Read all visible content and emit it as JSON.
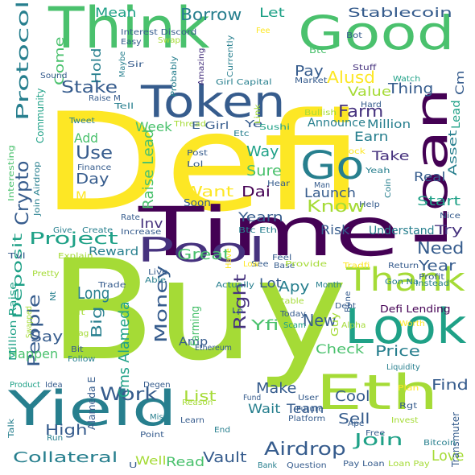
{
  "palette": {
    "yellow": "#fde725",
    "lime": "#a5db36",
    "green": "#4ac16d",
    "teal": "#1fa187",
    "cyan": "#277f8e",
    "blue": "#365c8d",
    "indigo": "#46327e",
    "purple": "#440154"
  },
  "words": [
    {
      "text": "Defi",
      "color": "#fde725"
    },
    {
      "text": "Buy",
      "color": "#a5db36"
    },
    {
      "text": "Think",
      "color": "#4ac16d"
    },
    {
      "text": "Good",
      "color": "#4ac16d"
    },
    {
      "text": "Time",
      "color": "#440154"
    },
    {
      "text": "Token",
      "color": "#365c8d"
    },
    {
      "text": "Loan",
      "color": "#440154"
    },
    {
      "text": "Yield",
      "color": "#277f8e"
    },
    {
      "text": "Eth",
      "color": "#a5db36"
    },
    {
      "text": "Look",
      "color": "#1fa187"
    },
    {
      "text": "Go",
      "color": "#277f8e"
    },
    {
      "text": "Pool",
      "color": "#46327e"
    },
    {
      "text": "Thank",
      "color": "#a5db36"
    },
    {
      "text": "Know",
      "color": "#a5db36"
    },
    {
      "text": "Protocol",
      "color": "#277f8e"
    },
    {
      "text": "Stablecoin",
      "color": "#365c8d"
    },
    {
      "text": "Borrow",
      "color": "#277f8e"
    },
    {
      "text": "Let",
      "color": "#1fa187"
    },
    {
      "text": "Mean",
      "color": "#1fa187"
    },
    {
      "text": "Come",
      "color": "#4ac16d"
    },
    {
      "text": "Hold",
      "color": "#277f8e"
    },
    {
      "text": "Stake",
      "color": "#365c8d"
    },
    {
      "text": "Pay",
      "color": "#365c8d"
    },
    {
      "text": "Alusd",
      "color": "#fde725"
    },
    {
      "text": "Thing",
      "color": "#365c8d"
    },
    {
      "text": "Value",
      "color": "#a5db36"
    },
    {
      "text": "Farm",
      "color": "#46327e"
    },
    {
      "text": "Earn",
      "color": "#277f8e"
    },
    {
      "text": "Announce",
      "color": "#277f8e"
    },
    {
      "text": "Million",
      "color": "#277f8e"
    },
    {
      "text": "Cm",
      "color": "#365c8d"
    },
    {
      "text": "Lead",
      "color": "#1fa187"
    },
    {
      "text": "Asset",
      "color": "#277f8e"
    },
    {
      "text": "Crypto",
      "color": "#365c8d"
    },
    {
      "text": "Use",
      "color": "#365c8d"
    },
    {
      "text": "Add",
      "color": "#4ac16d"
    },
    {
      "text": "Week",
      "color": "#4ac16d"
    },
    {
      "text": "Day",
      "color": "#365c8d"
    },
    {
      "text": "M",
      "color": "#fde725"
    },
    {
      "text": "Project",
      "color": "#1fa187"
    },
    {
      "text": "Want",
      "color": "#fde725"
    },
    {
      "text": "Dai",
      "color": "#440154"
    },
    {
      "text": "Launch",
      "color": "#365c8d"
    },
    {
      "text": "Take",
      "color": "#46327e"
    },
    {
      "text": "Real",
      "color": "#365c8d"
    },
    {
      "text": "Start",
      "color": "#1fa187"
    },
    {
      "text": "Way",
      "color": "#1fa187"
    },
    {
      "text": "Sure",
      "color": "#4ac16d"
    },
    {
      "text": "Yearn",
      "color": "#365c8d"
    },
    {
      "text": "Try",
      "color": "#46327e"
    },
    {
      "text": "Understand",
      "color": "#277f8e"
    },
    {
      "text": "Risk",
      "color": "#365c8d"
    },
    {
      "text": "Need",
      "color": "#365c8d"
    },
    {
      "text": "Year",
      "color": "#365c8d"
    },
    {
      "text": "Deposit",
      "color": "#1fa187"
    },
    {
      "text": "People",
      "color": "#365c8d"
    },
    {
      "text": "Great",
      "color": "#4ac16d"
    },
    {
      "text": "Money",
      "color": "#365c8d"
    },
    {
      "text": "Inv",
      "color": "#46327e"
    },
    {
      "text": "Reward",
      "color": "#277f8e"
    },
    {
      "text": "Right",
      "color": "#46327e"
    },
    {
      "text": "Apy",
      "color": "#277f8e"
    },
    {
      "text": "Lot",
      "color": "#365c8d"
    },
    {
      "text": "New",
      "color": "#365c8d"
    },
    {
      "text": "Long",
      "color": "#277f8e"
    },
    {
      "text": "Big",
      "color": "#277f8e"
    },
    {
      "text": "Say",
      "color": "#365c8d"
    },
    {
      "text": "Happen",
      "color": "#4ac16d"
    },
    {
      "text": "Work",
      "color": "#365c8d"
    },
    {
      "text": "List",
      "color": "#a5db36"
    },
    {
      "text": "Yfi",
      "color": "#4ac16d"
    },
    {
      "text": "Make",
      "color": "#365c8d"
    },
    {
      "text": "Check",
      "color": "#4ac16d"
    },
    {
      "text": "Price",
      "color": "#277f8e"
    },
    {
      "text": "Find",
      "color": "#365c8d"
    },
    {
      "text": "Cool",
      "color": "#365c8d"
    },
    {
      "text": "Sell",
      "color": "#365c8d"
    },
    {
      "text": "High",
      "color": "#365c8d"
    },
    {
      "text": "Collateral",
      "color": "#277f8e"
    },
    {
      "text": "Airdrop",
      "color": "#365c8d"
    },
    {
      "text": "Join",
      "color": "#1fa187"
    },
    {
      "text": "Love",
      "color": "#a5db36"
    },
    {
      "text": "Wait",
      "color": "#277f8e"
    },
    {
      "text": "Team",
      "color": "#365c8d"
    },
    {
      "text": "Vault",
      "color": "#365c8d"
    },
    {
      "text": "Read",
      "color": "#4ac16d"
    },
    {
      "text": "Well",
      "color": "#a5db36"
    },
    {
      "text": "Amp",
      "color": "#365c8d"
    },
    {
      "text": "Farming",
      "color": "#4ac16d"
    },
    {
      "text": "Cms Alameda",
      "color": "#1fa187"
    },
    {
      "text": "Raise Lead",
      "color": "#4ac16d"
    },
    {
      "text": "Ye",
      "color": "#365c8d"
    },
    {
      "text": "Btc",
      "color": "#4ac16d"
    },
    {
      "text": "Bot",
      "color": "#365c8d"
    },
    {
      "text": "Easy",
      "color": "#365c8d"
    },
    {
      "text": "Interest Discord",
      "color": "#365c8d"
    },
    {
      "text": "Swap",
      "color": "#a5db36"
    },
    {
      "text": "Maybe",
      "color": "#277f8e"
    },
    {
      "text": "Sir",
      "color": "#365c8d"
    },
    {
      "text": "Probably",
      "color": "#277f8e"
    },
    {
      "text": "Amazing",
      "color": "#46327e"
    },
    {
      "text": "Currently",
      "color": "#277f8e"
    },
    {
      "text": "Fee",
      "color": "#fde725"
    },
    {
      "text": "Stuff",
      "color": "#46327e"
    },
    {
      "text": "Watch",
      "color": "#1fa187"
    },
    {
      "text": "Hard",
      "color": "#365c8d"
    },
    {
      "text": "Market",
      "color": "#365c8d"
    },
    {
      "text": "Girl Capital",
      "color": "#277f8e"
    },
    {
      "text": "Sound",
      "color": "#365c8d"
    },
    {
      "text": "Raise M",
      "color": "#365c8d"
    },
    {
      "text": "Tell",
      "color": "#277f8e"
    },
    {
      "text": "Tweet",
      "color": "#277f8e"
    },
    {
      "text": "Community",
      "color": "#1fa187"
    },
    {
      "text": "Thread",
      "color": "#a5db36"
    },
    {
      "text": "E Girl",
      "color": "#365c8d"
    },
    {
      "text": "Sushi",
      "color": "#1fa187"
    },
    {
      "text": "Bullish",
      "color": "#a5db36"
    },
    {
      "text": "Link",
      "color": "#a5db36"
    },
    {
      "text": "Etc",
      "color": "#277f8e"
    },
    {
      "text": "Post",
      "color": "#365c8d"
    },
    {
      "text": "Lol",
      "color": "#365c8d"
    },
    {
      "text": "Lock",
      "color": "#fde725"
    },
    {
      "text": "Yeah",
      "color": "#277f8e"
    },
    {
      "text": "Coin",
      "color": "#277f8e"
    },
    {
      "text": "Man",
      "color": "#365c8d"
    },
    {
      "text": "Hear",
      "color": "#365c8d"
    },
    {
      "text": "Help",
      "color": "#365c8d"
    },
    {
      "text": "Interesting",
      "color": "#4ac16d"
    },
    {
      "text": "Join Airdrop",
      "color": "#277f8e"
    },
    {
      "text": "Finance",
      "color": "#365c8d"
    },
    {
      "text": "Soon",
      "color": "#365c8d"
    },
    {
      "text": "Btc Eth",
      "color": "#277f8e"
    },
    {
      "text": "Rate",
      "color": "#365c8d"
    },
    {
      "text": "Give",
      "color": "#277f8e"
    },
    {
      "text": "Create",
      "color": "#277f8e"
    },
    {
      "text": "Increase",
      "color": "#365c8d"
    },
    {
      "text": "Nice",
      "color": "#365c8d"
    },
    {
      "text": "Tvl",
      "color": "#365c8d"
    },
    {
      "text": "Explain",
      "color": "#a5db36"
    },
    {
      "text": "Pretty",
      "color": "#a5db36"
    },
    {
      "text": "See",
      "color": "#365c8d"
    },
    {
      "text": "Base",
      "color": "#365c8d"
    },
    {
      "text": "Feel",
      "color": "#365c8d"
    },
    {
      "text": "Provide",
      "color": "#a5db36"
    },
    {
      "text": "Tradfi",
      "color": "#fde725"
    },
    {
      "text": "Return",
      "color": "#365c8d"
    },
    {
      "text": "Profit",
      "color": "#365c8d"
    },
    {
      "text": "Instead",
      "color": "#277f8e"
    },
    {
      "text": "Gon Na",
      "color": "#277f8e"
    },
    {
      "text": "Have",
      "color": "#fde725"
    },
    {
      "text": "Low",
      "color": "#fde725"
    },
    {
      "text": "Live",
      "color": "#365c8d"
    },
    {
      "text": "Able",
      "color": "#277f8e"
    },
    {
      "text": "Actually",
      "color": "#277f8e"
    },
    {
      "text": "Month",
      "color": "#277f8e"
    },
    {
      "text": "Trade",
      "color": "#365c8d"
    },
    {
      "text": "Lp",
      "color": "#365c8d"
    },
    {
      "text": "Stable",
      "color": "#a5db36"
    },
    {
      "text": "Debt",
      "color": "#365c8d"
    },
    {
      "text": "Defi Lending",
      "color": "#440154"
    },
    {
      "text": "Rune",
      "color": "#365c8d"
    },
    {
      "text": "Nt",
      "color": "#277f8e"
    },
    {
      "text": "Nft",
      "color": "#a5db36"
    },
    {
      "text": "Million Raise",
      "color": "#1fa187"
    },
    {
      "text": "Swapped",
      "color": "#a5db36"
    },
    {
      "text": "Bag",
      "color": "#a5db36"
    },
    {
      "text": "Today",
      "color": "#365c8d"
    },
    {
      "text": "Scam",
      "color": "#1fa187"
    },
    {
      "text": "Alpha",
      "color": "#a5db36"
    },
    {
      "text": "Worth",
      "color": "#fde725"
    },
    {
      "text": "Guy",
      "color": "#a5db36"
    },
    {
      "text": "Bit",
      "color": "#365c8d"
    },
    {
      "text": "Follow",
      "color": "#277f8e"
    },
    {
      "text": "Ethereum",
      "color": "#365c8d"
    },
    {
      "text": "Liquidity",
      "color": "#277f8e"
    },
    {
      "text": "Product",
      "color": "#1fa187"
    },
    {
      "text": "Idea",
      "color": "#365c8d"
    },
    {
      "text": "Alameda E",
      "color": "#365c8d"
    },
    {
      "text": "Degen",
      "color": "#365c8d"
    },
    {
      "text": "Fund",
      "color": "#365c8d"
    },
    {
      "text": "Reason",
      "color": "#a5db36"
    },
    {
      "text": "User",
      "color": "#365c8d"
    },
    {
      "text": "Future",
      "color": "#365c8d"
    },
    {
      "text": "Platform",
      "color": "#365c8d"
    },
    {
      "text": "Plan",
      "color": "#fde725"
    },
    {
      "text": "Rgt",
      "color": "#365c8d"
    },
    {
      "text": "Invest",
      "color": "#a5db36"
    },
    {
      "text": "Transmuter",
      "color": "#365c8d"
    },
    {
      "text": "Talk",
      "color": "#277f8e"
    },
    {
      "text": "Miss",
      "color": "#277f8e"
    },
    {
      "text": "Learn",
      "color": "#365c8d"
    },
    {
      "text": "End",
      "color": "#277f8e"
    },
    {
      "text": "Run",
      "color": "#277f8e"
    },
    {
      "text": "Point",
      "color": "#365c8d"
    },
    {
      "text": "Free",
      "color": "#365c8d"
    },
    {
      "text": "Ape",
      "color": "#365c8d"
    },
    {
      "text": "Bitcoin",
      "color": "#277f8e"
    },
    {
      "text": "U",
      "color": "#365c8d"
    },
    {
      "text": "Bank",
      "color": "#277f8e"
    },
    {
      "text": "Question",
      "color": "#365c8d"
    },
    {
      "text": "Pay Loan",
      "color": "#365c8d"
    },
    {
      "text": "Loan Pay",
      "color": "#a5db36"
    }
  ]
}
